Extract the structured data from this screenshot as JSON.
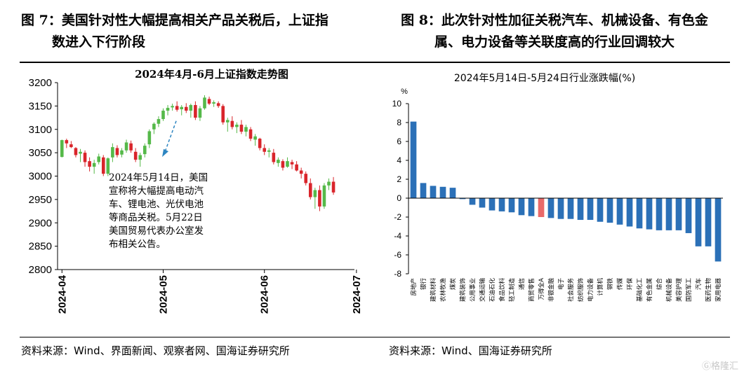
{
  "left_title": {
    "line1": "图 7：美国针对性大幅提高相关产品关税后，上证指",
    "line2": "数进入下行阶段"
  },
  "right_title": {
    "line1": "图 8：此次针对性加征关税汽车、机械设备、有色金",
    "line2": "属、电力设备等关联度高的行业回调较大"
  },
  "left_source": "资料来源：Wind、界面新闻、观察者网、国海证券研究所",
  "right_source": "资料来源：Wind、国海证券研究所",
  "watermark": "Ⓖ格隆汇",
  "colors": {
    "up": "#55b949",
    "down": "#d9252b",
    "bar": "#2b70b7",
    "highlight": "#e96a6a"
  },
  "chart_data": [
    {
      "type": "candlestick",
      "title": "2024年4月-6月上证指数走势图",
      "ylim": [
        2800,
        3200
      ],
      "yticks": [
        2800,
        2850,
        2900,
        2950,
        3000,
        3050,
        3100,
        3150,
        3200
      ],
      "xticks": [
        {
          "label": "2024-04",
          "index": 0
        },
        {
          "label": "2024-05",
          "index": 22
        },
        {
          "label": "2024-06",
          "index": 44
        },
        {
          "label": "2024-07",
          "index": 64
        }
      ],
      "annotation": [
        "2024年5月14日，美国",
        "宣称将大幅提高电动汽",
        "车、锂电池、光伏电池",
        "等商品关税。5月22日",
        "美国贸易代表办公室发",
        "布相关公告。"
      ],
      "annotation_target_index": 23,
      "ohlc": [
        [
          3041,
          3078,
          3040,
          3077
        ],
        [
          3077,
          3080,
          3060,
          3070
        ],
        [
          3068,
          3075,
          3060,
          3062
        ],
        [
          3060,
          3062,
          3040,
          3045
        ],
        [
          3048,
          3058,
          3030,
          3052
        ],
        [
          3050,
          3055,
          3020,
          3030
        ],
        [
          3032,
          3040,
          3010,
          3020
        ],
        [
          3020,
          3035,
          3005,
          3028
        ],
        [
          3030,
          3048,
          3025,
          3042
        ],
        [
          3040,
          3045,
          3000,
          3005
        ],
        [
          3005,
          3040,
          3000,
          3038
        ],
        [
          3040,
          3070,
          3030,
          3062
        ],
        [
          3060,
          3066,
          3040,
          3045
        ],
        [
          3046,
          3060,
          3040,
          3055
        ],
        [
          3055,
          3078,
          3050,
          3072
        ],
        [
          3070,
          3076,
          3050,
          3055
        ],
        [
          3052,
          3060,
          3030,
          3035
        ],
        [
          3035,
          3050,
          3020,
          3045
        ],
        [
          3047,
          3070,
          3040,
          3065
        ],
        [
          3068,
          3100,
          3060,
          3096
        ],
        [
          3100,
          3115,
          3090,
          3112
        ],
        [
          3112,
          3128,
          3105,
          3122
        ],
        [
          3122,
          3145,
          3118,
          3140
        ],
        [
          3140,
          3152,
          3130,
          3146
        ],
        [
          3147,
          3155,
          3140,
          3150
        ],
        [
          3150,
          3160,
          3138,
          3142
        ],
        [
          3143,
          3152,
          3130,
          3148
        ],
        [
          3148,
          3156,
          3135,
          3140
        ],
        [
          3140,
          3155,
          3125,
          3152
        ],
        [
          3152,
          3160,
          3120,
          3125
        ],
        [
          3125,
          3150,
          3118,
          3145
        ],
        [
          3145,
          3173,
          3142,
          3168
        ],
        [
          3165,
          3170,
          3152,
          3155
        ],
        [
          3155,
          3162,
          3148,
          3158
        ],
        [
          3156,
          3160,
          3146,
          3150
        ],
        [
          3150,
          3154,
          3110,
          3115
        ],
        [
          3115,
          3125,
          3095,
          3120
        ],
        [
          3118,
          3128,
          3100,
          3105
        ],
        [
          3105,
          3115,
          3092,
          3110
        ],
        [
          3110,
          3120,
          3090,
          3095
        ],
        [
          3095,
          3110,
          3085,
          3105
        ],
        [
          3100,
          3105,
          3075,
          3080
        ],
        [
          3078,
          3090,
          3065,
          3085
        ],
        [
          3080,
          3082,
          3055,
          3060
        ],
        [
          3060,
          3068,
          3045,
          3052
        ],
        [
          3052,
          3060,
          3040,
          3055
        ],
        [
          3050,
          3058,
          3025,
          3030
        ],
        [
          3028,
          3040,
          3020,
          3035
        ],
        [
          3032,
          3036,
          3012,
          3018
        ],
        [
          3020,
          3040,
          3018,
          3032
        ],
        [
          3030,
          3035,
          3015,
          3025
        ],
        [
          3025,
          3032,
          3010,
          3012
        ],
        [
          3012,
          3018,
          2995,
          3005
        ],
        [
          3005,
          3010,
          2980,
          2985
        ],
        [
          2985,
          2995,
          2950,
          2955
        ],
        [
          2955,
          2975,
          2930,
          2970
        ],
        [
          2970,
          2980,
          2925,
          2935
        ],
        [
          2935,
          2985,
          2930,
          2980
        ],
        [
          2980,
          2995,
          2970,
          2988
        ],
        [
          2988,
          2998,
          2960,
          2965
        ]
      ]
    },
    {
      "type": "bar",
      "title": "2024年5月14日-5月24日行业涨跌幅(%)",
      "ylabel": "%",
      "ylim": [
        -8,
        10
      ],
      "yticks": [
        -8,
        -6,
        -4,
        -2,
        0,
        2,
        4,
        6,
        8,
        10
      ],
      "categories": [
        "房地产",
        "银行",
        "建筑材料",
        "农林牧渔",
        "煤炭",
        "建筑装饰",
        "公用事业",
        "交通运输",
        "石油石化",
        "食品饮料",
        "轻工制造",
        "通信",
        "商贸零售",
        "万得全A",
        "非银金融",
        "电子",
        "社会服务",
        "纺织服饰",
        "电力设备",
        "计算机",
        "钢铁",
        "传媒",
        "环保",
        "基础化工",
        "有色金属",
        "综合",
        "机械设备",
        "美容护理",
        "国防军工",
        "汽车",
        "医药生物",
        "家用电器"
      ],
      "values": [
        8.1,
        1.6,
        1.3,
        1.2,
        1.1,
        -0.1,
        -0.7,
        -1.0,
        -1.3,
        -1.4,
        -1.5,
        -1.8,
        -1.9,
        -2.0,
        -2.1,
        -2.2,
        -2.2,
        -2.3,
        -2.3,
        -2.5,
        -2.6,
        -2.8,
        -3.0,
        -3.2,
        -3.3,
        -3.4,
        -3.4,
        -3.4,
        -3.7,
        -5.1,
        -5.1,
        -6.7
      ],
      "highlight_category": "万得全A"
    }
  ]
}
